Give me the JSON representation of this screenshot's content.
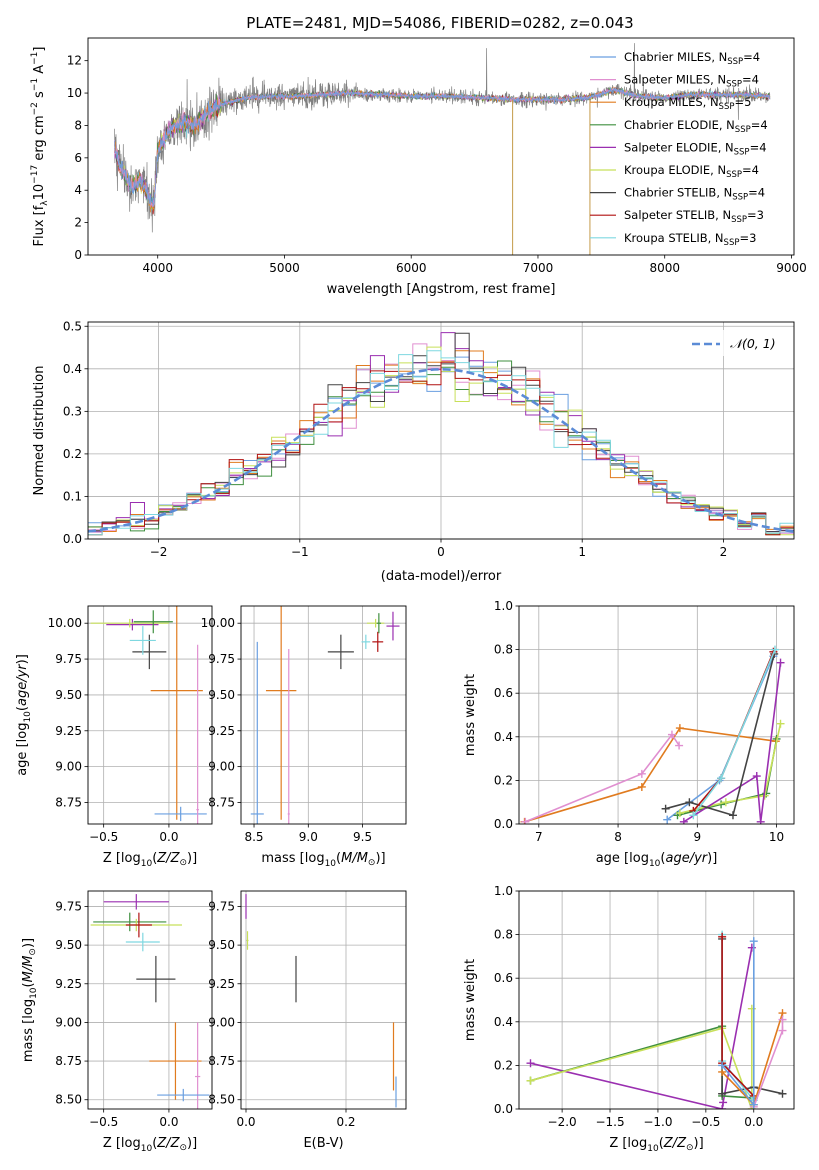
{
  "title": "PLATE=2481, MJD=54086, FIBERID=0282, z=0.043",
  "colors": {
    "Chabrier MILES": "#6a9fe0",
    "Salpeter MILES": "#e08fd0",
    "Kroupa MILES": "#e07b1f",
    "Chabrier ELODIE": "#3f8f3f",
    "Salpeter ELODIE": "#9a2fb0",
    "Kroupa ELODIE": "#c8e05a",
    "Chabrier STELIB": "#444444",
    "Salpeter STELIB": "#b01010",
    "Kroupa STELIB": "#7fd8e0",
    "data": "#808080",
    "gaussian": "#5b8bd6"
  },
  "chart_data": [
    {
      "id": "spectrum",
      "type": "line",
      "xlabel": "wavelength [Angstrom, rest frame]",
      "ylabel": "Flux [f_λ 10^-17 erg cm^-2 s^-1 A^-1]",
      "ylabel_parts": [
        "Flux [f",
        "λ",
        "10",
        "−17",
        " erg cm",
        "−2",
        " s",
        "−1",
        " A",
        "−1",
        "]"
      ],
      "xlim": [
        3450,
        9020
      ],
      "ylim": [
        0,
        13.4
      ],
      "xticks": [
        4000,
        5000,
        6000,
        7000,
        8000,
        9000
      ],
      "yticks": [
        0,
        2,
        4,
        6,
        8,
        10,
        12
      ],
      "legend": [
        {
          "label": "Chabrier MILES, N",
          "sub": "SSP",
          "tail": "=4",
          "model": "Chabrier MILES"
        },
        {
          "label": "Salpeter MILES, N",
          "sub": "SSP",
          "tail": "=4",
          "model": "Salpeter MILES"
        },
        {
          "label": "Kroupa MILES, N",
          "sub": "SSP",
          "tail": "=5",
          "model": "Kroupa MILES"
        },
        {
          "label": "Chabrier ELODIE, N",
          "sub": "SSP",
          "tail": "=4",
          "model": "Chabrier ELODIE"
        },
        {
          "label": "Salpeter ELODIE, N",
          "sub": "SSP",
          "tail": "=4",
          "model": "Salpeter ELODIE"
        },
        {
          "label": "Kroupa ELODIE, N",
          "sub": "SSP",
          "tail": "=4",
          "model": "Kroupa ELODIE"
        },
        {
          "label": "Chabrier STELIB, N",
          "sub": "SSP",
          "tail": "=4",
          "model": "Chabrier STELIB"
        },
        {
          "label": "Salpeter STELIB, N",
          "sub": "SSP",
          "tail": "=3",
          "model": "Salpeter STELIB"
        },
        {
          "label": "Kroupa STELIB, N",
          "sub": "SSP",
          "tail": "=3",
          "model": "Kroupa STELIB"
        }
      ],
      "continuum": [
        [
          3650,
          7.0
        ],
        [
          3700,
          5.5
        ],
        [
          3800,
          4.2
        ],
        [
          3860,
          4.6
        ],
        [
          3930,
          3.6
        ],
        [
          3970,
          3.0
        ],
        [
          4000,
          6.5
        ],
        [
          4100,
          7.8
        ],
        [
          4200,
          8.2
        ],
        [
          4300,
          8.0
        ],
        [
          4400,
          8.8
        ],
        [
          4500,
          9.3
        ],
        [
          4700,
          9.7
        ],
        [
          4900,
          9.8
        ],
        [
          5100,
          9.8
        ],
        [
          5300,
          9.9
        ],
        [
          5500,
          10.0
        ],
        [
          5800,
          9.9
        ],
        [
          6000,
          9.8
        ],
        [
          6300,
          9.8
        ],
        [
          6600,
          9.7
        ],
        [
          6800,
          9.6
        ],
        [
          7000,
          9.6
        ],
        [
          7200,
          9.6
        ],
        [
          7400,
          9.7
        ],
        [
          7600,
          10.2
        ],
        [
          7800,
          9.8
        ],
        [
          8000,
          9.7
        ],
        [
          8200,
          9.9
        ],
        [
          8400,
          9.9
        ],
        [
          8600,
          9.9
        ],
        [
          8800,
          9.8
        ]
      ],
      "sky_spike_wavelengths": [
        6800,
        7410
      ]
    },
    {
      "id": "residuals",
      "type": "step",
      "xlabel": "(data-model)/error",
      "ylabel": "Normed distribution",
      "xlim": [
        -2.5,
        2.5
      ],
      "ylim": [
        0,
        0.51
      ],
      "xticks": [
        -2,
        -1,
        0,
        1,
        2
      ],
      "yticks": [
        0.0,
        0.1,
        0.2,
        0.3,
        0.4,
        0.5
      ],
      "bin_width": 0.1,
      "legend": "N(0,1)",
      "legend_placement": "top-right",
      "gaussian": {
        "mean": 0,
        "sigma": 1
      }
    },
    {
      "id": "age_vs_Z",
      "type": "scatter",
      "xlabel": "Z [log10(Z/Z⊙)]",
      "ylabel": "age [log10(age/yr)]",
      "xlim": [
        -0.62,
        0.33
      ],
      "ylim": [
        8.6,
        10.12
      ],
      "xticks": [
        -0.5,
        0.0
      ],
      "yticks": [
        8.75,
        9.0,
        9.25,
        9.5,
        9.75,
        10.0
      ],
      "points": [
        {
          "model": "Chabrier STELIB",
          "x": -0.15,
          "y": 9.8,
          "xerr": 0.13,
          "yerr": 0.12
        },
        {
          "model": "Salpeter ELODIE",
          "x": -0.28,
          "y": 9.99,
          "xerr": 0.2,
          "yerr": 0.04
        },
        {
          "model": "Kroupa ELODIE",
          "x": -0.3,
          "y": 10.0,
          "xerr": 0.3,
          "yerr": 0.03
        },
        {
          "model": "Chabrier ELODIE",
          "x": -0.12,
          "y": 10.01,
          "xerr": 0.15,
          "yerr": 0.08
        },
        {
          "model": "Kroupa STELIB",
          "x": -0.2,
          "y": 9.88,
          "xerr": 0.1,
          "yerr": 0.1
        },
        {
          "model": "Kroupa MILES",
          "x": 0.06,
          "y": 9.53,
          "xerr": 0.2,
          "yerr": 0.9
        },
        {
          "model": "Chabrier MILES",
          "x": 0.09,
          "y": 8.67,
          "xerr": 0.2,
          "yerr": 0.05
        },
        {
          "model": "Salpeter MILES",
          "x": 0.22,
          "y": 8.7,
          "xerr": 0.01,
          "yerr": 1.15
        }
      ]
    },
    {
      "id": "age_vs_mass",
      "type": "scatter",
      "xlabel": "mass [log10(M/M⊙)]",
      "ylabel": "",
      "xlim": [
        8.38,
        9.9
      ],
      "ylim": [
        8.6,
        10.12
      ],
      "xticks": [
        8.5,
        9.0,
        9.5
      ],
      "yticks": [
        8.75,
        9.0,
        9.25,
        9.5,
        9.75,
        10.0
      ],
      "points": [
        {
          "model": "Chabrier STELIB",
          "x": 9.3,
          "y": 9.8,
          "xerr": 0.12,
          "yerr": 0.12
        },
        {
          "model": "Kroupa ELODIE",
          "x": 9.62,
          "y": 10.0,
          "xerr": 0.08,
          "yerr": 0.03
        },
        {
          "model": "Salpeter ELODIE",
          "x": 9.78,
          "y": 9.98,
          "xerr": 0.06,
          "yerr": 0.1
        },
        {
          "model": "Salpeter STELIB",
          "x": 9.64,
          "y": 9.87,
          "xerr": 0.05,
          "yerr": 0.07
        },
        {
          "model": "Kroupa STELIB",
          "x": 9.53,
          "y": 9.87,
          "xerr": 0.04,
          "yerr": 0.05
        },
        {
          "model": "Chabrier ELODIE",
          "x": 9.65,
          "y": 10.0,
          "xerr": 0.02,
          "yerr": 0.07
        },
        {
          "model": "Kroupa MILES",
          "x": 8.75,
          "y": 9.53,
          "xerr": 0.14,
          "yerr": 0.9
        },
        {
          "model": "Chabrier MILES",
          "x": 8.53,
          "y": 8.67,
          "xerr": 0.06,
          "yerr": 1.2
        },
        {
          "model": "Salpeter MILES",
          "x": 8.82,
          "y": 8.67,
          "xerr": 0.01,
          "yerr": 1.15
        }
      ]
    },
    {
      "id": "mw_vs_age",
      "type": "line",
      "xlabel": "age [log10(age/yr)]",
      "ylabel": "mass weight",
      "xlim": [
        6.75,
        10.22
      ],
      "ylim": [
        0,
        1
      ],
      "xticks": [
        7,
        8,
        9,
        10
      ],
      "yticks": [
        0.0,
        0.2,
        0.4,
        0.6,
        0.8,
        1.0
      ],
      "series": [
        {
          "model": "Kroupa MILES",
          "x": [
            6.82,
            8.3,
            8.78,
            9.99
          ],
          "y": [
            0.01,
            0.17,
            0.44,
            0.38
          ]
        },
        {
          "model": "Salpeter MILES",
          "x": [
            6.83,
            8.3,
            8.68,
            8.77
          ],
          "y": [
            0.01,
            0.23,
            0.41,
            0.36
          ]
        },
        {
          "model": "Chabrier MILES",
          "x": [
            8.62,
            9.28,
            9.96
          ],
          "y": [
            0.02,
            0.2,
            0.77
          ]
        },
        {
          "model": "Chabrier ELODIE",
          "x": [
            8.75,
            9.3,
            9.87,
            10.0
          ],
          "y": [
            0.04,
            0.09,
            0.14,
            0.39
          ]
        },
        {
          "model": "Kroupa ELODIE",
          "x": [
            8.78,
            9.36,
            9.85,
            10.05
          ],
          "y": [
            0.05,
            0.1,
            0.13,
            0.46
          ]
        },
        {
          "model": "Salpeter ELODIE",
          "x": [
            8.83,
            9.75,
            9.8,
            10.05
          ],
          "y": [
            0.01,
            0.22,
            0.01,
            0.74
          ]
        },
        {
          "model": "Chabrier STELIB",
          "x": [
            8.6,
            8.9,
            9.45,
            9.97
          ],
          "y": [
            0.07,
            0.1,
            0.04,
            0.78
          ]
        },
        {
          "model": "Salpeter STELIB",
          "x": [
            8.95,
            9.3,
            9.96
          ],
          "y": [
            0.06,
            0.21,
            0.79
          ]
        },
        {
          "model": "Kroupa STELIB",
          "x": [
            8.95,
            9.3,
            9.98
          ],
          "y": [
            0.04,
            0.21,
            0.8
          ]
        }
      ]
    },
    {
      "id": "mass_vs_Z",
      "type": "scatter",
      "xlabel": "Z [log10(Z/Z⊙)]",
      "ylabel": "mass [log10(M/M⊙)]",
      "xlim": [
        -0.62,
        0.33
      ],
      "ylim": [
        8.44,
        9.85
      ],
      "xticks": [
        -0.5,
        0.0
      ],
      "yticks": [
        8.5,
        8.75,
        9.0,
        9.25,
        9.5,
        9.75
      ],
      "points": [
        {
          "model": "Salpeter ELODIE",
          "x": -0.25,
          "y": 9.78,
          "xerr": 0.25,
          "yerr": 0.05
        },
        {
          "model": "Chabrier ELODIE",
          "x": -0.3,
          "y": 9.65,
          "xerr": 0.28,
          "yerr": 0.06
        },
        {
          "model": "Kroupa ELODIE",
          "x": -0.25,
          "y": 9.63,
          "xerr": 0.35,
          "yerr": 0.04
        },
        {
          "model": "Salpeter STELIB",
          "x": -0.23,
          "y": 9.63,
          "xerr": 0.1,
          "yerr": 0.08
        },
        {
          "model": "Kroupa STELIB",
          "x": -0.2,
          "y": 9.52,
          "xerr": 0.13,
          "yerr": 0.06
        },
        {
          "model": "Chabrier STELIB",
          "x": -0.1,
          "y": 9.28,
          "xerr": 0.15,
          "yerr": 0.15
        },
        {
          "model": "Kroupa MILES",
          "x": 0.05,
          "y": 8.75,
          "xerr": 0.2,
          "yerr": 0.25
        },
        {
          "model": "Salpeter MILES",
          "x": 0.22,
          "y": 8.65,
          "xerr": 0.02,
          "yerr": 0.35
        },
        {
          "model": "Chabrier MILES",
          "x": 0.11,
          "y": 8.53,
          "xerr": 0.2,
          "yerr": 0.04
        }
      ]
    },
    {
      "id": "mass_vs_ebv",
      "type": "scatter",
      "xlabel": "E(B-V)",
      "ylabel": "",
      "xlim": [
        -0.01,
        0.32
      ],
      "ylim": [
        8.44,
        9.85
      ],
      "xticks": [
        0.0,
        0.2
      ],
      "yticks": [
        8.5,
        8.75,
        9.0,
        9.25,
        9.5,
        9.75
      ],
      "points": [
        {
          "model": "Salpeter ELODIE",
          "x": 0.0,
          "y": 9.75,
          "xerr": 0.0,
          "yerr": 0.08
        },
        {
          "model": "Kroupa ELODIE",
          "x": 0.003,
          "y": 9.53,
          "xerr": 0.002,
          "yerr": 0.06
        },
        {
          "model": "Chabrier STELIB",
          "x": 0.1,
          "y": 9.28,
          "xerr": 0.0,
          "yerr": 0.15
        },
        {
          "model": "Kroupa MILES",
          "x": 0.295,
          "y": 8.78,
          "xerr": 0.0,
          "yerr": 0.22
        },
        {
          "model": "Chabrier MILES",
          "x": 0.3,
          "y": 8.55,
          "xerr": 0.0,
          "yerr": 0.1
        }
      ]
    },
    {
      "id": "mw_vs_Z",
      "type": "line",
      "xlabel": "Z [log10(Z/Z⊙)]",
      "ylabel": "mass weight",
      "xlim": [
        -2.45,
        0.42
      ],
      "ylim": [
        0,
        1
      ],
      "xticks": [
        -2.0,
        -1.5,
        -1.0,
        -0.5,
        0.0
      ],
      "yticks": [
        0.0,
        0.2,
        0.4,
        0.6,
        0.8,
        1.0
      ],
      "series": [
        {
          "model": "Salpeter ELODIE",
          "x": [
            -2.33,
            -0.33,
            -0.32,
            -0.02
          ],
          "y": [
            0.21,
            0.0,
            0.03,
            0.74
          ]
        },
        {
          "model": "Chabrier ELODIE",
          "x": [
            -2.33,
            -0.33,
            -0.33,
            0.0
          ],
          "y": [
            0.13,
            0.38,
            0.06,
            0.05
          ]
        },
        {
          "model": "Kroupa ELODIE",
          "x": [
            -2.33,
            -0.33,
            -0.02,
            -0.02
          ],
          "y": [
            0.13,
            0.37,
            0.0,
            0.46
          ]
        },
        {
          "model": "Chabrier STELIB",
          "x": [
            -0.33,
            -0.33,
            0.0,
            0.3
          ],
          "y": [
            0.78,
            0.07,
            0.1,
            0.07
          ]
        },
        {
          "model": "Kroupa STELIB",
          "x": [
            -0.33,
            -0.33,
            0.0
          ],
          "y": [
            0.8,
            0.22,
            0.04
          ]
        },
        {
          "model": "Salpeter STELIB",
          "x": [
            -0.33,
            -0.33,
            0.0
          ],
          "y": [
            0.79,
            0.21,
            0.06
          ]
        },
        {
          "model": "Kroupa MILES",
          "x": [
            -0.33,
            0.0,
            0.3
          ],
          "y": [
            0.17,
            0.02,
            0.44
          ]
        },
        {
          "model": "Salpeter MILES",
          "x": [
            0.0,
            0.3,
            0.3
          ],
          "y": [
            0.01,
            0.36,
            0.41
          ]
        },
        {
          "model": "Chabrier MILES",
          "x": [
            -0.33,
            0.0,
            0.0
          ],
          "y": [
            0.2,
            0.02,
            0.77
          ]
        }
      ]
    }
  ]
}
